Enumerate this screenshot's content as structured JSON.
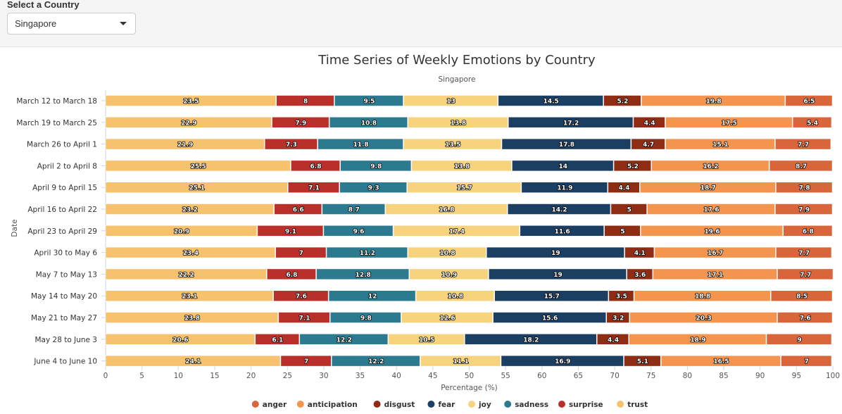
{
  "control": {
    "label": "Select a Country",
    "selected": "Singapore"
  },
  "chart_data": {
    "type": "bar",
    "orientation": "horizontal",
    "stacked": true,
    "title": "Time Series of Weekly Emotions by Country",
    "subtitle": "Singapore",
    "xlabel": "Percentage (%)",
    "ylabel": "Date",
    "xlim": [
      0,
      100
    ],
    "xticks": [
      0,
      5,
      10,
      15,
      20,
      25,
      30,
      35,
      40,
      45,
      50,
      55,
      60,
      65,
      70,
      75,
      80,
      85,
      90,
      95,
      100
    ],
    "legend_position": "bottom",
    "categories": [
      "March 12 to March 18",
      "March 19 to March 25",
      "March 26 to April 1",
      "April 2 to April 8",
      "April 9 to April 15",
      "April 16 to April 22",
      "April 23 to April 29",
      "April 30 to May 6",
      "May 7 to May 13",
      "May 14 to May 20",
      "May 21 to May 27",
      "May 28 to June 3",
      "June 4 to June 10"
    ],
    "legend": [
      {
        "name": "anger",
        "color": "#d9663a"
      },
      {
        "name": "anticipation",
        "color": "#f3954f"
      },
      {
        "name": "disgust",
        "color": "#8f2d14"
      },
      {
        "name": "fear",
        "color": "#1b3f63"
      },
      {
        "name": "joy",
        "color": "#f7d37e"
      },
      {
        "name": "sadness",
        "color": "#2b7a8f"
      },
      {
        "name": "surprise",
        "color": "#b9302a"
      },
      {
        "name": "trust",
        "color": "#f6c26e"
      }
    ],
    "stack_order": [
      "trust",
      "surprise",
      "sadness",
      "joy",
      "fear",
      "disgust",
      "anticipation",
      "anger"
    ],
    "series": [
      {
        "name": "trust",
        "color": "#f6c26e",
        "values": [
          23.5,
          22.9,
          21.9,
          25.5,
          25.1,
          23.2,
          20.9,
          23.4,
          22.2,
          23.1,
          23.8,
          20.6,
          24.1
        ]
      },
      {
        "name": "surprise",
        "color": "#b9302a",
        "values": [
          8,
          7.9,
          7.3,
          6.8,
          7.1,
          6.6,
          9.1,
          7,
          6.8,
          7.6,
          7.1,
          6.1,
          7
        ]
      },
      {
        "name": "sadness",
        "color": "#2b7a8f",
        "values": [
          9.5,
          10.8,
          11.8,
          9.8,
          9.3,
          8.7,
          9.6,
          11.2,
          12.8,
          12,
          9.8,
          12.2,
          12.2
        ]
      },
      {
        "name": "joy",
        "color": "#f7d37e",
        "values": [
          13,
          13.8,
          13.5,
          13.8,
          15.7,
          16.8,
          17.4,
          10.8,
          10.9,
          10.8,
          12.6,
          10.5,
          11.1
        ]
      },
      {
        "name": "fear",
        "color": "#1b3f63",
        "values": [
          14.5,
          17.2,
          17.8,
          14,
          11.9,
          14.2,
          11.6,
          19,
          19,
          15.7,
          15.6,
          18.2,
          16.9
        ]
      },
      {
        "name": "disgust",
        "color": "#8f2d14",
        "values": [
          5.2,
          4.4,
          4.7,
          5.2,
          4.4,
          5,
          5,
          4.1,
          3.6,
          3.5,
          3.2,
          4.4,
          5.1
        ]
      },
      {
        "name": "anticipation",
        "color": "#f3954f",
        "values": [
          19.8,
          17.5,
          15.1,
          16.2,
          18.7,
          17.6,
          19.6,
          16.7,
          17.1,
          18.8,
          20.3,
          18.9,
          16.5
        ]
      },
      {
        "name": "anger",
        "color": "#d9663a",
        "values": [
          6.5,
          5.4,
          7.7,
          8.7,
          7.8,
          7.9,
          6.8,
          7.7,
          7.7,
          8.5,
          7.6,
          9,
          7
        ]
      }
    ]
  }
}
